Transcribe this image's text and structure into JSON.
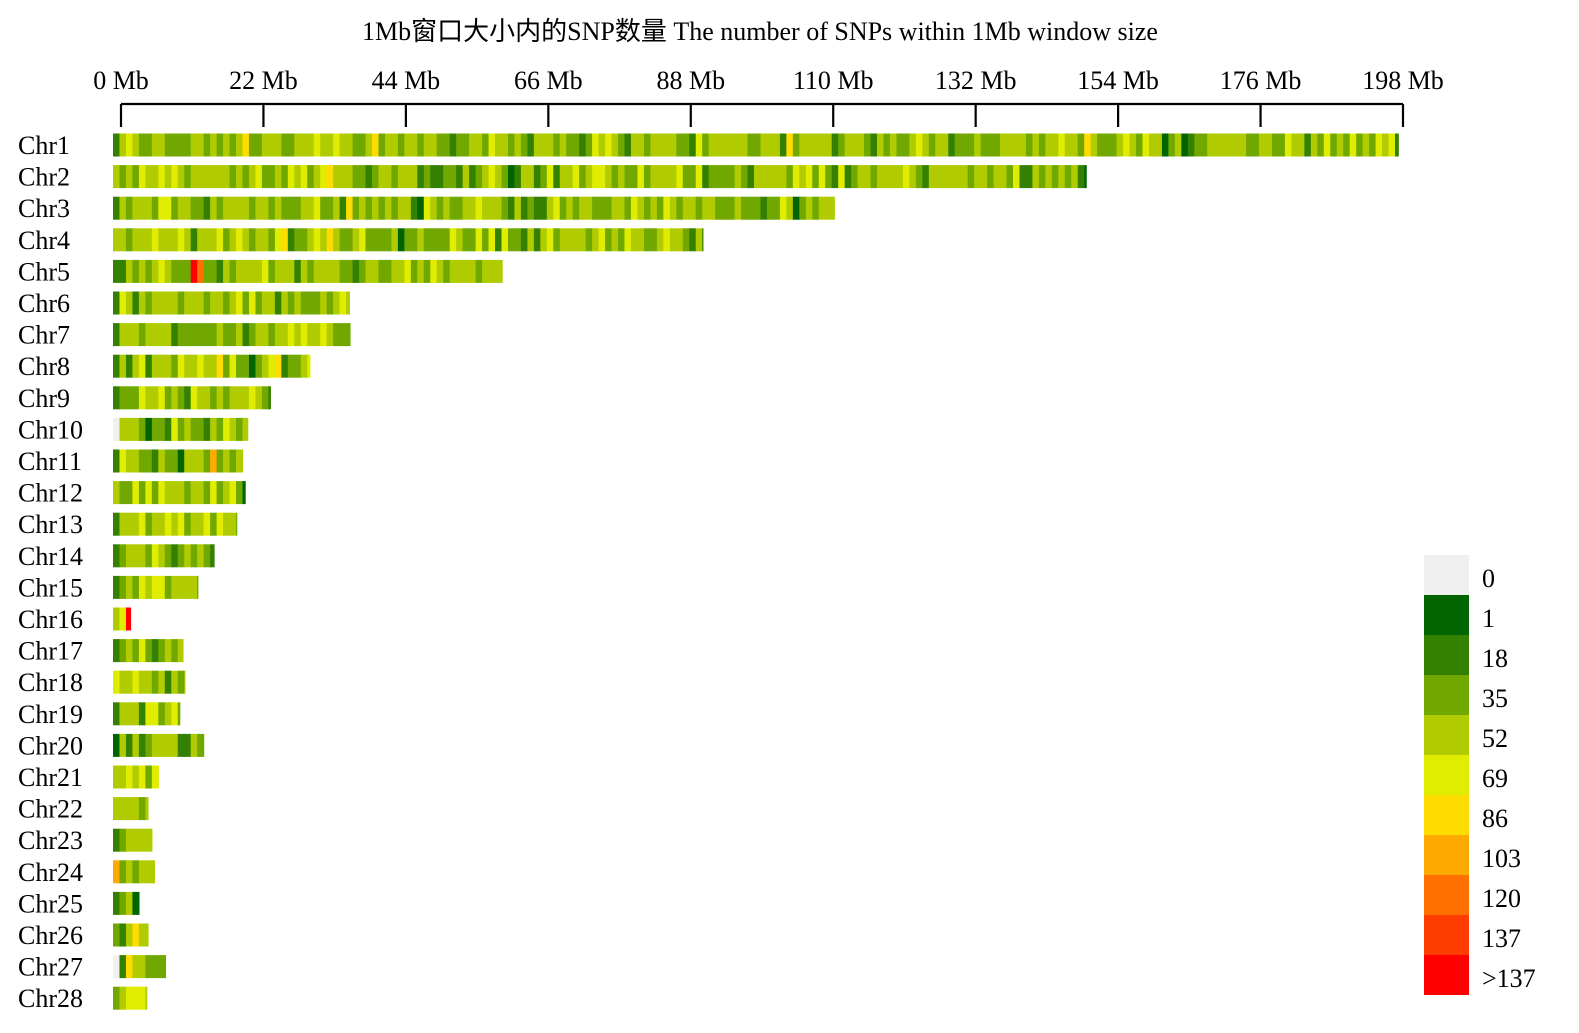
{
  "chart_data": {
    "type": "heatmap",
    "title": "1Mb窗口大小内的SNP数量 The number of SNPs within 1Mb window size",
    "xlabel": "",
    "ylabel": "",
    "x_axis_ticks": [
      "0 Mb",
      "22 Mb",
      "44 Mb",
      "66 Mb",
      "88 Mb",
      "110 Mb",
      "132 Mb",
      "154 Mb",
      "176 Mb",
      "198 Mb"
    ],
    "x_tick_values": [
      0,
      22,
      44,
      66,
      88,
      110,
      132,
      154,
      176,
      198
    ],
    "xlim": [
      0,
      198
    ],
    "window_size_mb": 1,
    "chromosomes": [
      {
        "name": "Chr1",
        "length_mb": 198.5
      },
      {
        "name": "Chr2",
        "length_mb": 150.3
      },
      {
        "name": "Chr3",
        "length_mb": 111.4
      },
      {
        "name": "Chr4",
        "length_mb": 91.1
      },
      {
        "name": "Chr5",
        "length_mb": 60.1
      },
      {
        "name": "Chr6",
        "length_mb": 36.5
      },
      {
        "name": "Chr7",
        "length_mb": 36.6
      },
      {
        "name": "Chr8",
        "length_mb": 30.4
      },
      {
        "name": "Chr9",
        "length_mb": 24.3
      },
      {
        "name": "Chr10",
        "length_mb": 20.8
      },
      {
        "name": "Chr11",
        "length_mb": 20.0
      },
      {
        "name": "Chr12",
        "length_mb": 20.4
      },
      {
        "name": "Chr13",
        "length_mb": 19.1
      },
      {
        "name": "Chr14",
        "length_mb": 15.6
      },
      {
        "name": "Chr15",
        "length_mb": 13.1
      },
      {
        "name": "Chr16",
        "length_mb": 2.7
      },
      {
        "name": "Chr17",
        "length_mb": 10.8
      },
      {
        "name": "Chr18",
        "length_mb": 11.1
      },
      {
        "name": "Chr19",
        "length_mb": 10.3
      },
      {
        "name": "Chr20",
        "length_mb": 14.0
      },
      {
        "name": "Chr21",
        "length_mb": 7.0
      },
      {
        "name": "Chr22",
        "length_mb": 5.4
      },
      {
        "name": "Chr23",
        "length_mb": 6.0
      },
      {
        "name": "Chr24",
        "length_mb": 6.4
      },
      {
        "name": "Chr25",
        "length_mb": 4.0
      },
      {
        "name": "Chr26",
        "length_mb": 5.4
      },
      {
        "name": "Chr27",
        "length_mb": 8.1
      },
      {
        "name": "Chr28",
        "length_mb": 5.2
      }
    ],
    "notable_windows": [
      {
        "chrom": "Chr5",
        "mb": 12,
        "bin": ">137"
      },
      {
        "chrom": "Chr5",
        "mb": 13,
        "bin": "120"
      },
      {
        "chrom": "Chr16",
        "mb": 2,
        "bin": ">137"
      },
      {
        "chrom": "Chr11",
        "mb": 15,
        "bin": "103"
      },
      {
        "chrom": "Chr24",
        "mb": 0,
        "bin": "103"
      }
    ],
    "legend": {
      "position": "bottom-right",
      "bins": [
        {
          "label": "0",
          "color": "#f0f0f0"
        },
        {
          "label": "1",
          "color": "#006400"
        },
        {
          "label": "18",
          "color": "#348000"
        },
        {
          "label": "35",
          "color": "#70a800"
        },
        {
          "label": "52",
          "color": "#b0cc00"
        },
        {
          "label": "69",
          "color": "#e0ec00"
        },
        {
          "label": "86",
          "color": "#ffdc00"
        },
        {
          "label": "103",
          "color": "#ffaa00"
        },
        {
          "label": "120",
          "color": "#ff7000"
        },
        {
          "label": "137",
          "color": "#ff3c00"
        },
        {
          "label": ">137",
          "color": "#ff0000"
        }
      ]
    }
  }
}
